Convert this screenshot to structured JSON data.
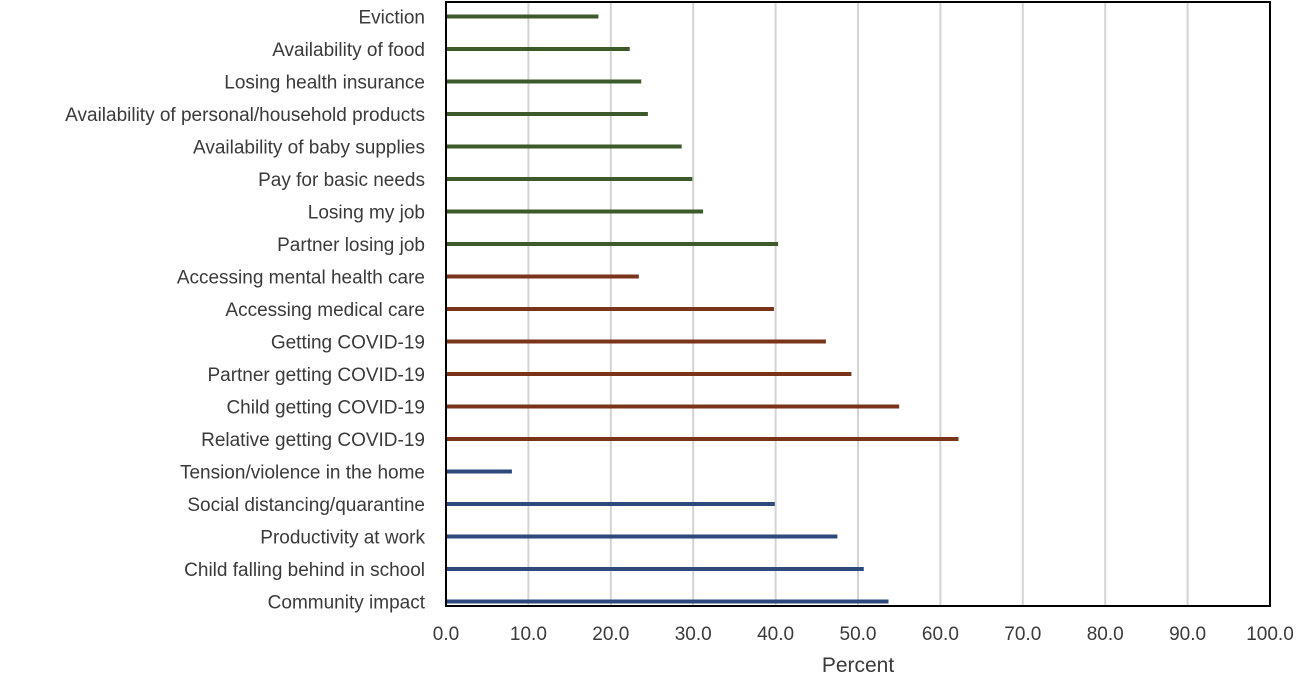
{
  "chart_data": {
    "type": "bar",
    "orientation": "horizontal",
    "title": "",
    "xlabel": "Percent",
    "ylabel": "",
    "xlim": [
      0,
      100
    ],
    "x_ticks": [
      "0.0",
      "10.0",
      "20.0",
      "30.0",
      "40.0",
      "50.0",
      "60.0",
      "70.0",
      "80.0",
      "90.0",
      "100.0"
    ],
    "grid": "vertical",
    "legend": "none",
    "colors": {
      "green": "#3d5a2a",
      "brown": "#7a3419",
      "blue": "#2e4a7d"
    },
    "categories": [
      "Eviction",
      "Availability of food",
      "Losing health insurance",
      "Availability of personal/household products",
      "Availability of baby supplies",
      "Pay for basic needs",
      "Losing my job",
      "Partner losing job",
      "Accessing mental health care",
      "Accessing medical care",
      "Getting COVID-19",
      "Partner getting COVID-19",
      "Child getting COVID-19",
      "Relative getting COVID-19",
      "Tension/violence in the home",
      "Social distancing/quarantine",
      "Productivity at work",
      "Child falling behind in school",
      "Community impact"
    ],
    "values": [
      18.5,
      22.3,
      23.7,
      24.5,
      28.6,
      29.9,
      31.2,
      40.3,
      23.4,
      39.8,
      46.1,
      49.2,
      55.0,
      62.2,
      8.0,
      39.9,
      47.5,
      50.7,
      53.7
    ],
    "bar_colors": [
      "green",
      "green",
      "green",
      "green",
      "green",
      "green",
      "green",
      "green",
      "brown",
      "brown",
      "brown",
      "brown",
      "brown",
      "brown",
      "blue",
      "blue",
      "blue",
      "blue",
      "blue"
    ]
  }
}
